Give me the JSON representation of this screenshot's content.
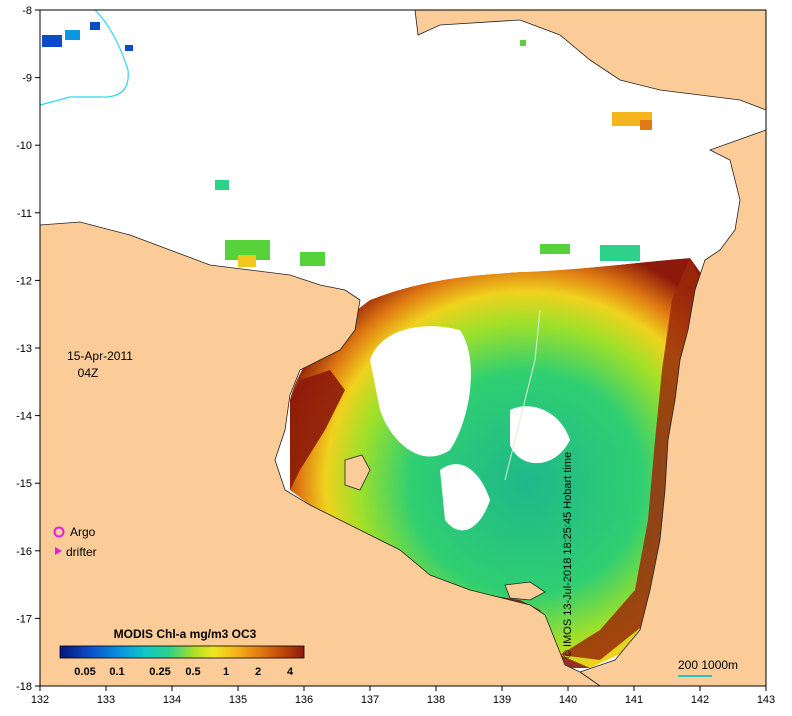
{
  "date_label": "15-Apr-2011",
  "time_label": "04Z",
  "legend": {
    "argo_label": "Argo",
    "drifter_label": "drifter"
  },
  "colorbar": {
    "title": "MODIS Chl-a mg/m3 OC3",
    "ticks": [
      "0.05",
      "0.1",
      "0.25",
      "0.5",
      "1",
      "2",
      "4"
    ],
    "colors": [
      "#08147a",
      "#0a4cc8",
      "#0a96e0",
      "#10c8c8",
      "#2ed18a",
      "#58d23a",
      "#aee024",
      "#f0e820",
      "#f5b51c",
      "#e07a12",
      "#c04808",
      "#8c1a0a"
    ]
  },
  "scale": {
    "label": "200  1000m"
  },
  "credit": "© IMOS 13-Jul-2018 18:25:45 Hobart time",
  "axes": {
    "x_ticks": [
      "132",
      "133",
      "134",
      "135",
      "136",
      "137",
      "138",
      "139",
      "140",
      "141",
      "142",
      "143"
    ],
    "y_ticks": [
      "-8",
      "-9",
      "-10",
      "-11",
      "-12",
      "-13",
      "-14",
      "-15",
      "-16",
      "-17",
      "-18"
    ]
  },
  "colors": {
    "land": "#fbcb98",
    "coast": "#222222",
    "ocean_no_data": "#ffffff",
    "argo": "#e020e0",
    "scale_bar": "#22c8c8"
  }
}
